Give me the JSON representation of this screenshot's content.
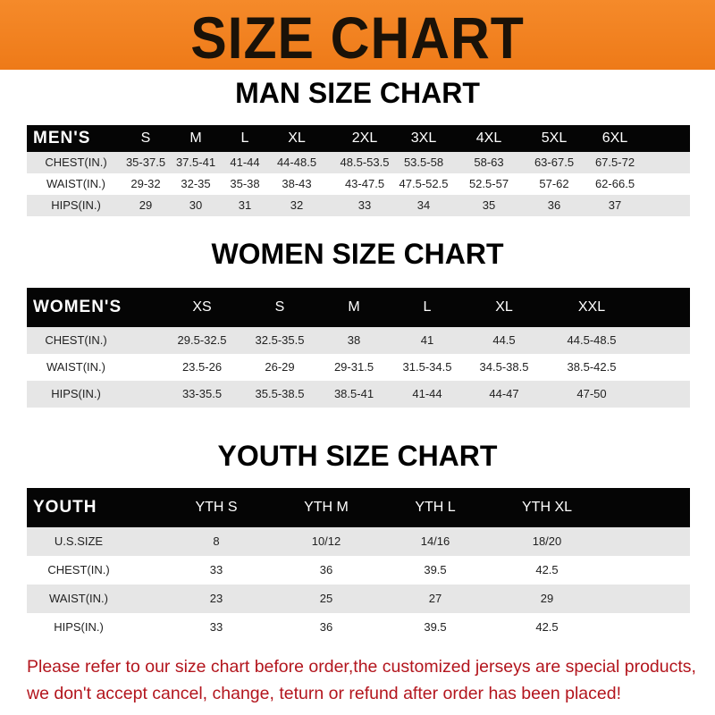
{
  "title": "SIZE CHART",
  "colors": {
    "banner": "#f08020",
    "header_row": "#050505",
    "stripe": "#e6e6e6",
    "note": "#b3151d"
  },
  "men": {
    "title": "MAN SIZE CHART",
    "header": [
      "MEN'S",
      "S",
      "M",
      "L",
      "XL",
      "2XL",
      "3XL",
      "4XL",
      "5XL",
      "6XL"
    ],
    "rows": [
      [
        "CHEST(IN.)",
        "35-37.5",
        "37.5-41",
        "41-44",
        "44-48.5",
        "48.5-53.5",
        "53.5-58",
        "58-63",
        "63-67.5",
        "67.5-72"
      ],
      [
        "WAIST(IN.)",
        "29-32",
        "32-35",
        "35-38",
        "38-43",
        "43-47.5",
        "47.5-52.5",
        "52.5-57",
        "57-62",
        "62-66.5"
      ],
      [
        "HIPS(IN.)",
        "29",
        "30",
        "31",
        "32",
        "33",
        "34",
        "35",
        "36",
        "37"
      ]
    ]
  },
  "women": {
    "title": "WOMEN SIZE CHART",
    "header": [
      "WOMEN'S",
      "XS",
      "S",
      "M",
      "L",
      "XL",
      "XXL"
    ],
    "rows": [
      [
        "CHEST(IN.)",
        "29.5-32.5",
        "32.5-35.5",
        "38",
        "41",
        "44.5",
        "44.5-48.5"
      ],
      [
        "WAIST(IN.)",
        "23.5-26",
        "26-29",
        "29-31.5",
        "31.5-34.5",
        "34.5-38.5",
        "38.5-42.5"
      ],
      [
        "HIPS(IN.)",
        "33-35.5",
        "35.5-38.5",
        "38.5-41",
        "41-44",
        "44-47",
        "47-50"
      ]
    ]
  },
  "youth": {
    "title": "YOUTH SIZE CHART",
    "header": [
      "YOUTH",
      "YTH S",
      "YTH M",
      "YTH L",
      "YTH XL"
    ],
    "rows": [
      [
        "U.S.SIZE",
        "8",
        "10/12",
        "14/16",
        "18/20"
      ],
      [
        "CHEST(IN.)",
        "33",
        "36",
        "39.5",
        "42.5"
      ],
      [
        "WAIST(IN.)",
        "23",
        "25",
        "27",
        "29"
      ],
      [
        "HIPS(IN.)",
        "33",
        "36",
        "39.5",
        "42.5"
      ]
    ]
  },
  "note": {
    "line1": "Please refer to our size chart before order,the customized jerseys are special products,",
    "line2": "we don't accept cancel, change, teturn or refund after order has been placed!"
  }
}
